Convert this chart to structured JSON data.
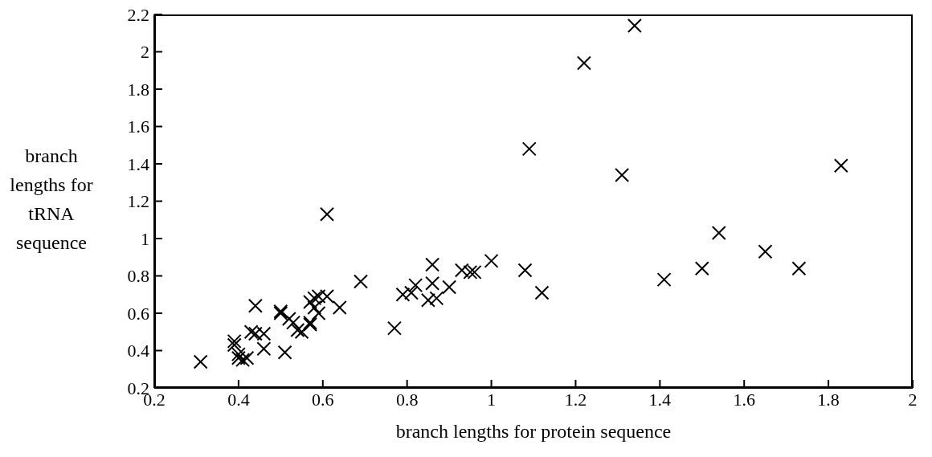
{
  "chart_data": {
    "type": "scatter",
    "xlabel": "branch lengths for protein sequence",
    "ylabel": "branch lengths for tRNA sequence",
    "xlim": [
      0.2,
      2
    ],
    "xticks": [
      0.2,
      0.4,
      0.6,
      0.8,
      1,
      1.2,
      1.4,
      1.6,
      1.8,
      2
    ],
    "ylim": [
      0.2,
      2.2
    ],
    "yticks": [
      0.2,
      0.4,
      0.6,
      0.8,
      1,
      1.2,
      1.4,
      1.6,
      1.8,
      2,
      2.2
    ],
    "marker": "cross",
    "grid": false,
    "legend": false,
    "series": [
      {
        "color": "#000000",
        "x": [
          0.31,
          0.39,
          0.39,
          0.4,
          0.4,
          0.41,
          0.42,
          0.43,
          0.44,
          0.44,
          0.46,
          0.46,
          0.5,
          0.5,
          0.51,
          0.52,
          0.53,
          0.54,
          0.55,
          0.57,
          0.57,
          0.57,
          0.58,
          0.58,
          0.59,
          0.59,
          0.61,
          0.61,
          0.64,
          0.69,
          0.77,
          0.79,
          0.81,
          0.82,
          0.85,
          0.86,
          0.86,
          0.87,
          0.9,
          0.93,
          0.95,
          0.96,
          1.0,
          1.08,
          1.09,
          1.12,
          1.22,
          1.31,
          1.34,
          1.41,
          1.5,
          1.54,
          1.65,
          1.73,
          1.83
        ],
        "values": [
          0.34,
          0.45,
          0.43,
          0.38,
          0.36,
          0.35,
          0.36,
          0.5,
          0.64,
          0.49,
          0.49,
          0.41,
          0.61,
          0.6,
          0.39,
          0.57,
          0.55,
          0.51,
          0.5,
          0.54,
          0.55,
          0.66,
          0.68,
          0.63,
          0.69,
          0.6,
          0.69,
          1.13,
          0.63,
          0.77,
          0.52,
          0.7,
          0.71,
          0.75,
          0.67,
          0.86,
          0.76,
          0.68,
          0.74,
          0.83,
          0.82,
          0.82,
          0.88,
          0.83,
          1.48,
          0.71,
          1.94,
          1.34,
          2.14,
          0.78,
          0.84,
          1.03,
          0.93,
          0.84,
          1.39
        ]
      }
    ]
  }
}
